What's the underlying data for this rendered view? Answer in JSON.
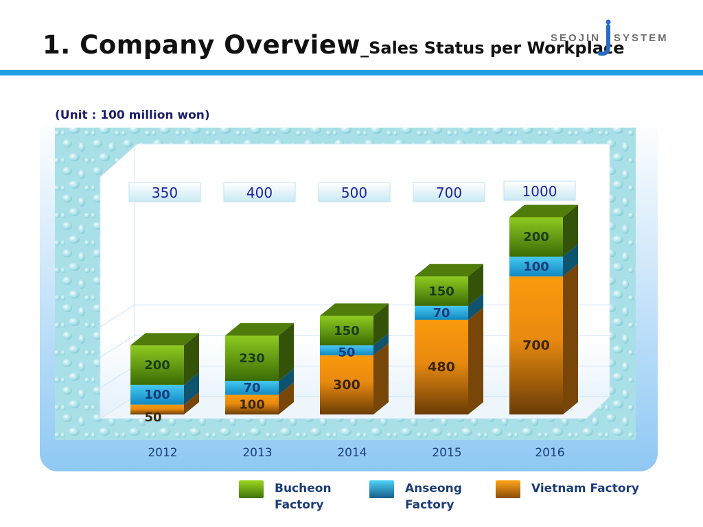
{
  "header": {
    "title": "1. Company Overview",
    "title_separator": "_",
    "subtitle": "Sales Status per Workplace",
    "logo_text_left": "SEOJIN",
    "logo_text_right": "SYSTEM"
  },
  "unit_label": "(Unit : 100 million won)",
  "colors": {
    "accent_rule": "#1ea0e4",
    "bucheon": "#6aa510",
    "anseong": "#1ea7dc",
    "vietnam": "#f08c10",
    "totals_text": "#2020a0"
  },
  "chart_data": {
    "type": "bar",
    "stacked": true,
    "categories": [
      "2012",
      "2013",
      "2014",
      "2015",
      "2016"
    ],
    "series": [
      {
        "name": "Vietnam Factory",
        "values": [
          50,
          100,
          300,
          480,
          700
        ]
      },
      {
        "name": "Anseong Factory",
        "values": [
          100,
          70,
          50,
          70,
          100
        ]
      },
      {
        "name": "Bucheon Factory",
        "values": [
          200,
          230,
          150,
          150,
          200
        ]
      }
    ],
    "totals": [
      "350",
      "400",
      "500",
      "700",
      "1000"
    ],
    "ylim": [
      0,
      1000
    ],
    "grid": true,
    "legend_position": "bottom-right"
  },
  "legend": [
    {
      "name": "Bucheon Factory",
      "line1": "Bucheon",
      "line2": "Factory"
    },
    {
      "name": "Anseong Factory",
      "line1": "Anseong",
      "line2": "Factory"
    },
    {
      "name": "Vietnam Factory",
      "line1": "Vietnam Factory",
      "line2": ""
    }
  ]
}
